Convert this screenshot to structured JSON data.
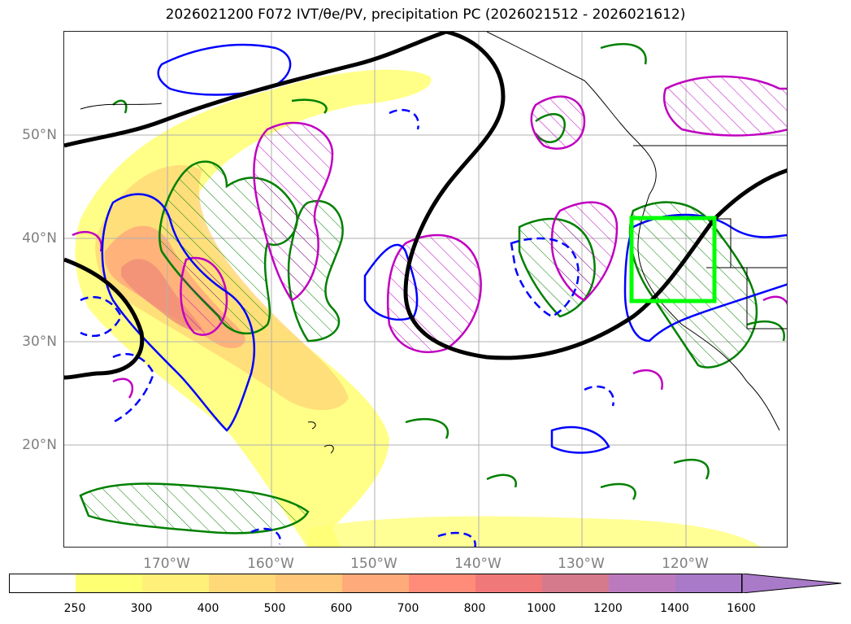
{
  "title": "2026021200 F072 IVT/θe/PV, precipitation PC (2026021512 - 2026021612)",
  "map": {
    "lat_labels": [
      "50°N",
      "40°N",
      "30°N",
      "20°N"
    ],
    "lon_labels": [
      "170°W",
      "160°W",
      "150°W",
      "140°W",
      "130°W",
      "120°W"
    ],
    "colors": {
      "ivt_contour": "#0000ff",
      "theta_e_contour": "#008000",
      "pv_contour": "#c000c0",
      "pv_line": "#000000",
      "region_box": "#00ff00",
      "gridline": "#b0b0b0",
      "coastline": "#000000"
    }
  },
  "colorbar": {
    "ticks": [
      "250",
      "300",
      "400",
      "500",
      "600",
      "700",
      "800",
      "1000",
      "1200",
      "1400",
      "1600"
    ],
    "colors": [
      "#ffffff",
      "#ffff73",
      "#fff07a",
      "#ffd978",
      "#ffc77a",
      "#ffaa7a",
      "#ff8c78",
      "#f07878",
      "#d47a8c",
      "#bc7abe",
      "#a87ac8"
    ],
    "extend": "max"
  }
}
